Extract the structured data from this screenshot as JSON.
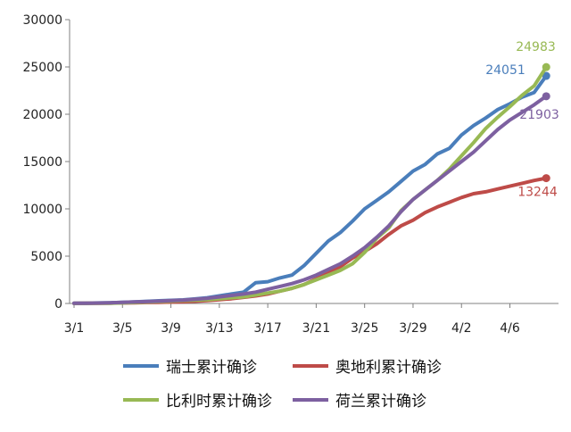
{
  "chart_data": {
    "type": "line",
    "title": "",
    "xlabel": "",
    "ylabel": "",
    "ylim": [
      0,
      30000
    ],
    "yticks": [
      0,
      5000,
      10000,
      15000,
      20000,
      25000,
      30000
    ],
    "x_tick_labels": [
      "3/1",
      "3/5",
      "3/9",
      "3/13",
      "3/17",
      "3/21",
      "3/25",
      "3/29",
      "4/2",
      "4/6"
    ],
    "grid": false,
    "legend_position": "bottom",
    "series": [
      {
        "name": "瑞士累计确诊",
        "color": "#4a7ebb",
        "end_label": "24051",
        "values": [
          20,
          40,
          60,
          80,
          120,
          160,
          230,
          280,
          330,
          380,
          480,
          600,
          800,
          1000,
          1200,
          2200,
          2300,
          2700,
          3000,
          4000,
          5300,
          6600,
          7500,
          8700,
          10000,
          10900,
          11800,
          12900,
          14000,
          14700,
          15800,
          16400,
          17800,
          18800,
          19600,
          20500,
          21100,
          21800,
          22300,
          24051
        ]
      },
      {
        "name": "奥地利累计确诊",
        "color": "#be4b48",
        "end_label": "13244",
        "values": [
          10,
          20,
          30,
          40,
          60,
          80,
          100,
          120,
          150,
          180,
          240,
          300,
          400,
          500,
          650,
          800,
          1000,
          1300,
          1600,
          2000,
          2600,
          3200,
          3900,
          4800,
          5500,
          6300,
          7300,
          8200,
          8800,
          9600,
          10200,
          10700,
          11200,
          11600,
          11800,
          12100,
          12400,
          12700,
          13000,
          13244
        ]
      },
      {
        "name": "比利时累计确诊",
        "color": "#98b954",
        "end_label": "24983",
        "values": [
          5,
          10,
          20,
          30,
          60,
          100,
          150,
          200,
          250,
          300,
          350,
          400,
          500,
          600,
          700,
          900,
          1100,
          1300,
          1600,
          2000,
          2500,
          3000,
          3500,
          4200,
          5400,
          6900,
          8000,
          9800,
          11000,
          12000,
          13000,
          14200,
          15600,
          17000,
          18500,
          19700,
          20800,
          22000,
          23000,
          24983
        ]
      },
      {
        "name": "荷兰累计确诊",
        "color": "#7d60a0",
        "end_label": "21903",
        "values": [
          15,
          30,
          50,
          80,
          120,
          160,
          200,
          250,
          300,
          350,
          450,
          550,
          700,
          850,
          1000,
          1200,
          1500,
          1800,
          2100,
          2500,
          3000,
          3600,
          4200,
          5000,
          5900,
          7000,
          8200,
          9700,
          11000,
          12000,
          13000,
          14000,
          15000,
          16000,
          17200,
          18400,
          19400,
          20200,
          21000,
          21903
        ]
      }
    ]
  }
}
